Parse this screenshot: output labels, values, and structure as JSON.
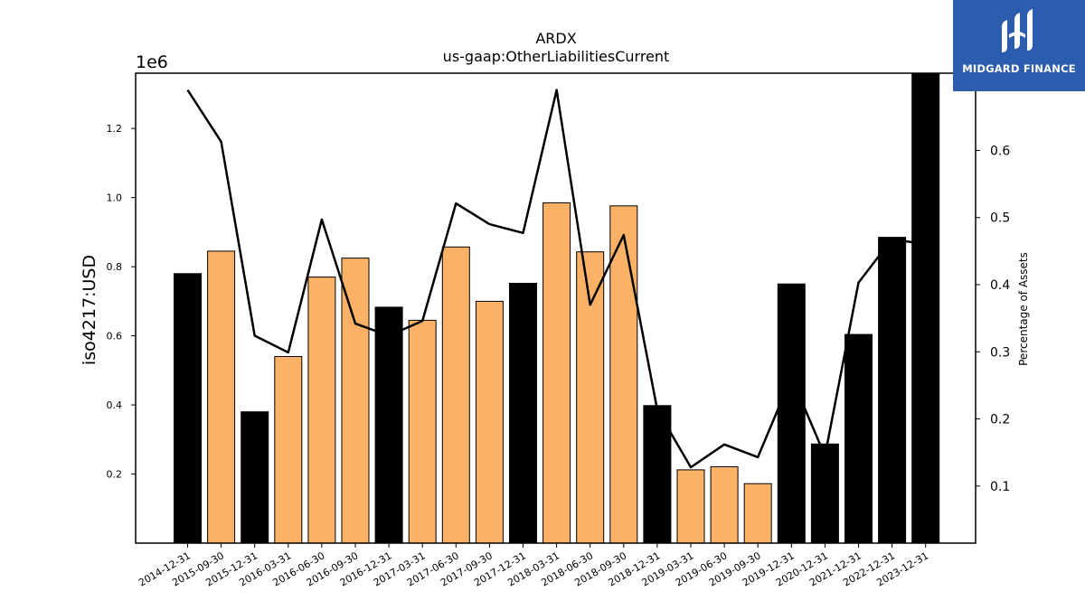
{
  "chart_data": {
    "type": "bar",
    "title": "ARDX",
    "subtitle": "us-gaap:OtherLiabilitiesCurrent",
    "ylabel": "iso4217:USD",
    "y2label": "Percentage of Assets",
    "y_offset_label": "1e6",
    "ylim": [
      0,
      1360000
    ],
    "y2lim": [
      0.015,
      0.715
    ],
    "yticks": [
      {
        "value": 200000,
        "label": "0.2"
      },
      {
        "value": 400000,
        "label": "0.4"
      },
      {
        "value": 600000,
        "label": "0.6"
      },
      {
        "value": 800000,
        "label": "0.8"
      },
      {
        "value": 1000000,
        "label": "1.0"
      },
      {
        "value": 1200000,
        "label": "1.2"
      }
    ],
    "y2ticks": [
      {
        "value": 0.1,
        "label": "0.1"
      },
      {
        "value": 0.2,
        "label": "0.2"
      },
      {
        "value": 0.3,
        "label": "0.3"
      },
      {
        "value": 0.4,
        "label": "0.4"
      },
      {
        "value": 0.5,
        "label": "0.5"
      },
      {
        "value": 0.6,
        "label": "0.6"
      }
    ],
    "categories": [
      "2014-12-31",
      "2015-09-30",
      "2015-12-31",
      "2016-03-31",
      "2016-06-30",
      "2016-09-30",
      "2016-12-31",
      "2017-03-31",
      "2017-06-30",
      "2017-09-30",
      "2017-12-31",
      "2018-03-31",
      "2018-06-30",
      "2018-09-30",
      "2018-12-31",
      "2019-03-31",
      "2019-06-30",
      "2019-09-30",
      "2019-12-31",
      "2020-12-31",
      "2021-12-31",
      "2022-12-31",
      "2023-12-31"
    ],
    "series": [
      {
        "kind": "bar",
        "values": [
          780000,
          845000,
          380000,
          540000,
          770000,
          825000,
          683000,
          645000,
          857000,
          700000,
          752000,
          985000,
          843000,
          976000,
          398000,
          212000,
          221000,
          172000,
          750000,
          287000,
          604000,
          885000,
          1360000
        ],
        "annual": [
          true,
          false,
          true,
          false,
          false,
          false,
          true,
          false,
          false,
          false,
          true,
          false,
          false,
          false,
          true,
          false,
          false,
          false,
          true,
          true,
          true,
          true,
          true
        ]
      },
      {
        "kind": "line",
        "axis": "right",
        "values": [
          0.69,
          0.613,
          0.324,
          0.299,
          0.497,
          0.342,
          0.324,
          0.346,
          0.521,
          0.49,
          0.477,
          0.69,
          0.37,
          0.474,
          0.214,
          0.128,
          0.162,
          0.143,
          0.262,
          0.145,
          0.403,
          0.468,
          0.46
        ]
      }
    ],
    "colors": {
      "annual_bar": "#000000",
      "quarter_bar": "#fbb266",
      "line": "#000000"
    }
  },
  "logo": {
    "text": "MIDGARD FINANCE",
    "background": "#2c5cad"
  }
}
